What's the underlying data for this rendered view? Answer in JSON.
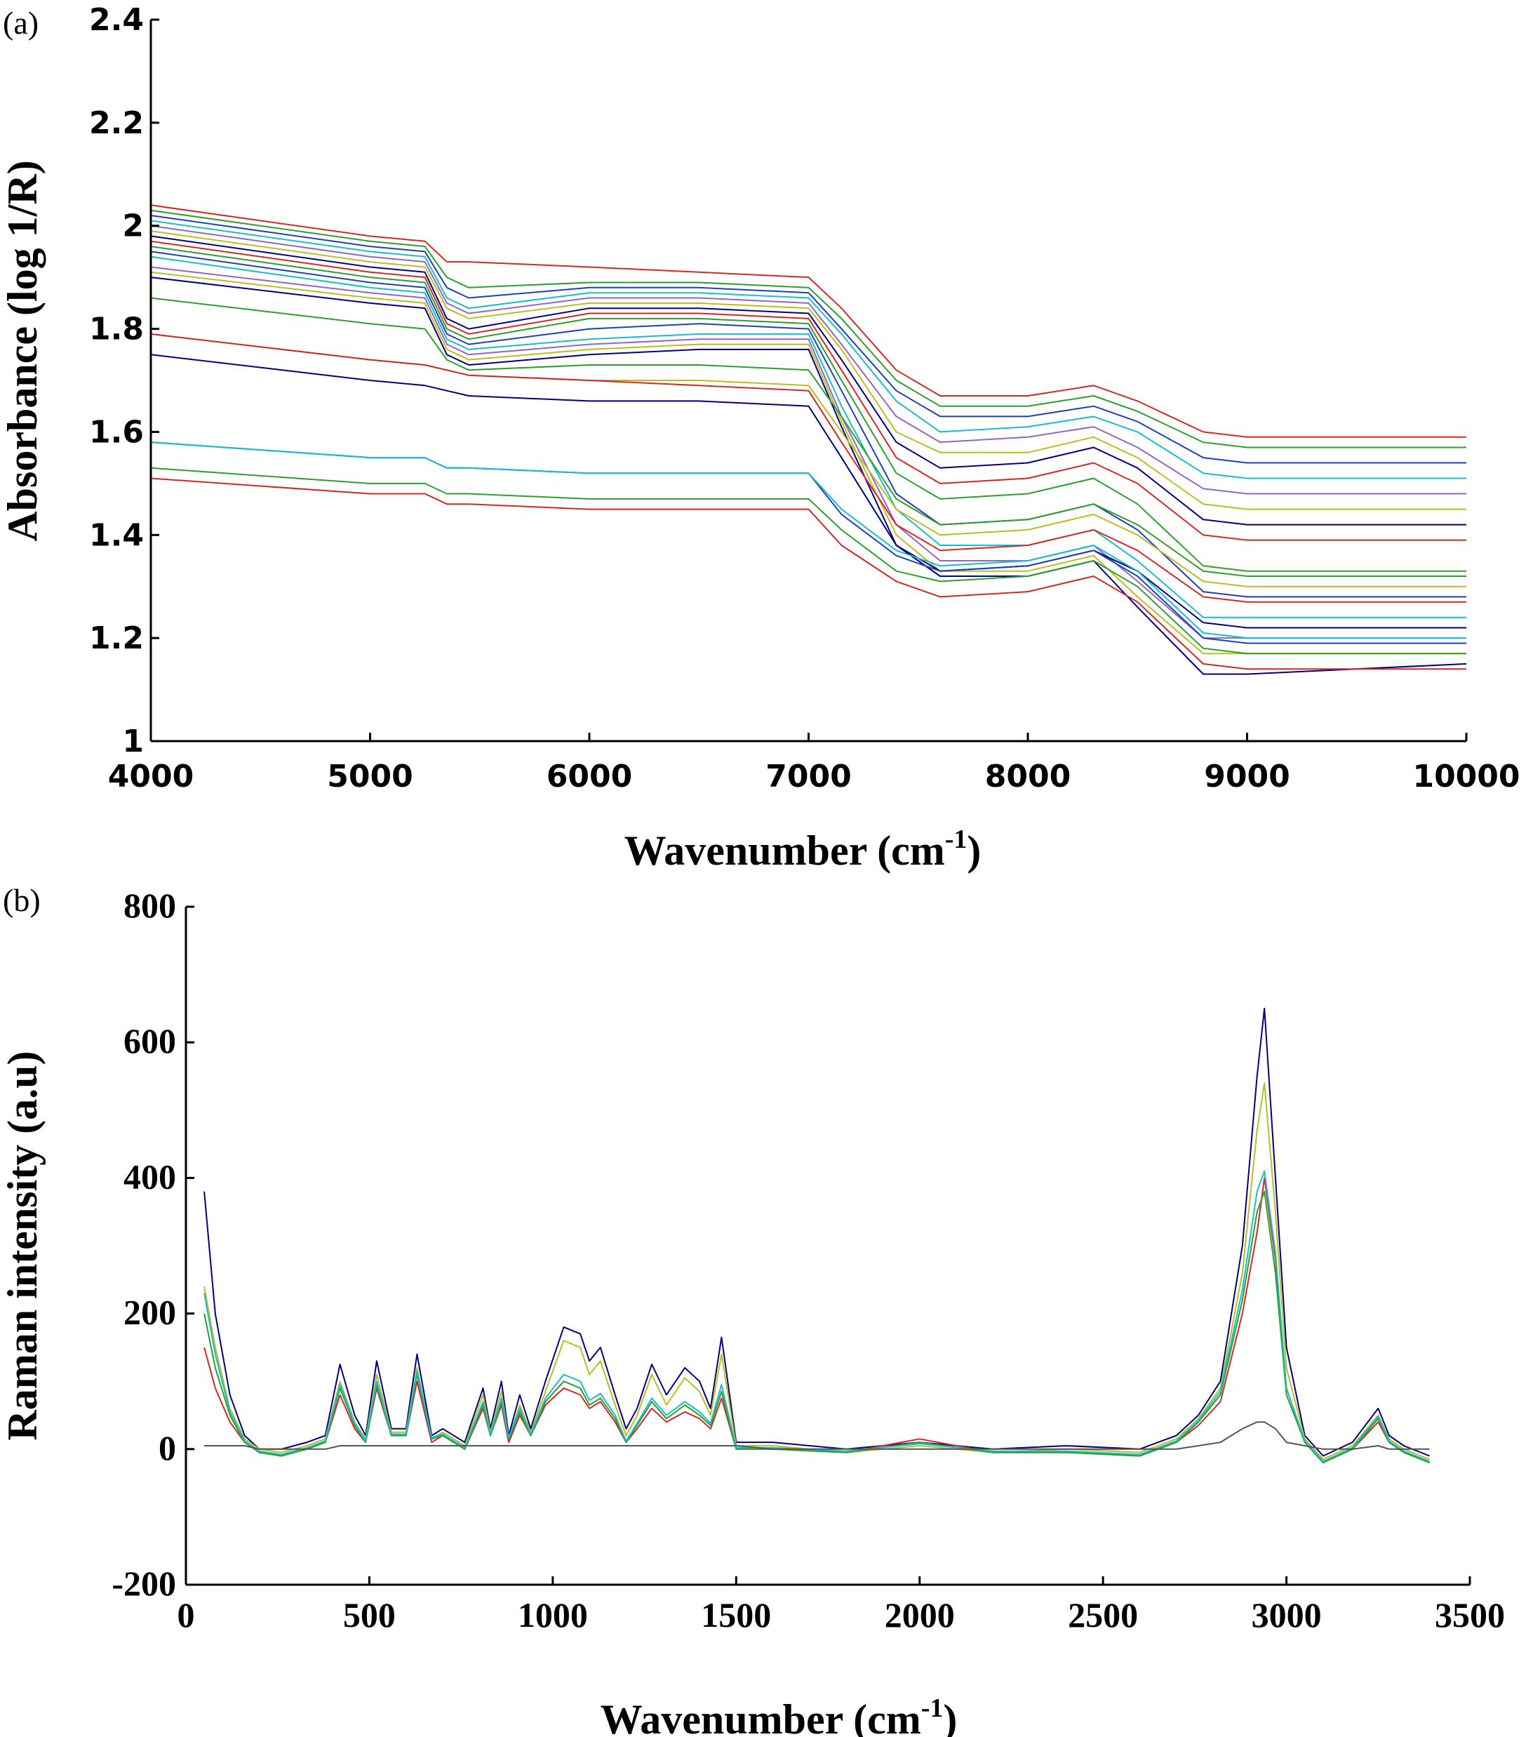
{
  "chart_data": [
    {
      "type": "line",
      "panel_label": "(a)",
      "title": "",
      "xlabel": "Wavenumber (cm",
      "xlabel_sup": "-1",
      "xlabel_end": ")",
      "ylabel": "Absorbance (log 1/R)",
      "xlim": [
        4000,
        10000
      ],
      "ylim": [
        1,
        2.4
      ],
      "xticks": [
        4000,
        5000,
        6000,
        7000,
        8000,
        9000,
        10000
      ],
      "yticks": [
        1,
        1.2,
        1.4,
        1.6,
        1.8,
        2,
        2.2,
        2.4
      ],
      "xtick_labels": [
        "4000",
        "5000",
        "6000",
        "7000",
        "8000",
        "9000",
        "10000"
      ],
      "ytick_labels": [
        "1",
        "1.2",
        "1.4",
        "1.6",
        "1.8",
        "2",
        "2.2",
        "2.4"
      ],
      "grid": false,
      "legend": "none",
      "x": [
        4000,
        5000,
        5250,
        5350,
        5450,
        6000,
        6500,
        7000,
        7150,
        7400,
        7600,
        8000,
        8300,
        8500,
        8800,
        9000,
        10000
      ],
      "series": [
        {
          "color": "#d62728",
          "values": [
            2.04,
            1.98,
            1.97,
            1.93,
            1.93,
            1.92,
            1.91,
            1.9,
            1.84,
            1.72,
            1.67,
            1.67,
            1.69,
            1.66,
            1.6,
            1.59,
            1.59
          ]
        },
        {
          "color": "#2ca02c",
          "values": [
            2.03,
            1.97,
            1.96,
            1.9,
            1.88,
            1.89,
            1.89,
            1.88,
            1.82,
            1.7,
            1.65,
            1.65,
            1.67,
            1.64,
            1.58,
            1.57,
            1.57
          ]
        },
        {
          "color": "#1f3fbf",
          "values": [
            2.02,
            1.96,
            1.95,
            1.88,
            1.86,
            1.88,
            1.88,
            1.87,
            1.8,
            1.68,
            1.63,
            1.63,
            1.65,
            1.62,
            1.55,
            1.54,
            1.54
          ]
        },
        {
          "color": "#17becf",
          "values": [
            2.01,
            1.95,
            1.94,
            1.86,
            1.84,
            1.87,
            1.87,
            1.86,
            1.79,
            1.66,
            1.6,
            1.61,
            1.63,
            1.6,
            1.52,
            1.51,
            1.51
          ]
        },
        {
          "color": "#9467bd",
          "values": [
            2.0,
            1.94,
            1.93,
            1.85,
            1.83,
            1.86,
            1.86,
            1.85,
            1.77,
            1.63,
            1.58,
            1.59,
            1.61,
            1.57,
            1.49,
            1.48,
            1.48
          ]
        },
        {
          "color": "#bcbd22",
          "values": [
            1.99,
            1.93,
            1.92,
            1.84,
            1.82,
            1.85,
            1.85,
            1.84,
            1.76,
            1.6,
            1.56,
            1.56,
            1.59,
            1.55,
            1.46,
            1.45,
            1.45
          ]
        },
        {
          "color": "#000080",
          "values": [
            1.98,
            1.92,
            1.91,
            1.82,
            1.8,
            1.84,
            1.84,
            1.83,
            1.74,
            1.58,
            1.53,
            1.54,
            1.57,
            1.53,
            1.43,
            1.42,
            1.42
          ]
        },
        {
          "color": "#d62728",
          "values": [
            1.97,
            1.91,
            1.9,
            1.81,
            1.79,
            1.83,
            1.83,
            1.82,
            1.72,
            1.55,
            1.5,
            1.51,
            1.54,
            1.5,
            1.4,
            1.39,
            1.39
          ]
        },
        {
          "color": "#2ca02c",
          "values": [
            1.96,
            1.9,
            1.89,
            1.8,
            1.78,
            1.82,
            1.82,
            1.81,
            1.7,
            1.52,
            1.47,
            1.48,
            1.51,
            1.46,
            1.34,
            1.33,
            1.33
          ]
        },
        {
          "color": "#1f3fbf",
          "values": [
            1.95,
            1.89,
            1.88,
            1.79,
            1.77,
            1.8,
            1.81,
            1.8,
            1.68,
            1.48,
            1.42,
            1.43,
            1.46,
            1.41,
            1.29,
            1.28,
            1.28
          ]
        },
        {
          "color": "#17becf",
          "values": [
            1.94,
            1.88,
            1.87,
            1.78,
            1.76,
            1.78,
            1.79,
            1.79,
            1.65,
            1.45,
            1.38,
            1.38,
            1.41,
            1.35,
            1.24,
            1.24,
            1.24
          ]
        },
        {
          "color": "#9467bd",
          "values": [
            1.92,
            1.87,
            1.86,
            1.77,
            1.75,
            1.77,
            1.78,
            1.78,
            1.63,
            1.42,
            1.35,
            1.35,
            1.38,
            1.31,
            1.2,
            1.2,
            1.2
          ]
        },
        {
          "color": "#bcbd22",
          "values": [
            1.91,
            1.86,
            1.85,
            1.76,
            1.74,
            1.76,
            1.77,
            1.77,
            1.62,
            1.4,
            1.33,
            1.33,
            1.36,
            1.28,
            1.17,
            1.17,
            1.17
          ]
        },
        {
          "color": "#000080",
          "values": [
            1.9,
            1.85,
            1.84,
            1.75,
            1.73,
            1.75,
            1.76,
            1.76,
            1.61,
            1.38,
            1.32,
            1.32,
            1.35,
            1.26,
            1.13,
            1.13,
            1.15
          ]
        },
        {
          "color": "#2ca02c",
          "values": [
            1.86,
            1.81,
            1.8,
            1.74,
            1.72,
            1.73,
            1.73,
            1.72,
            1.63,
            1.47,
            1.42,
            1.43,
            1.46,
            1.42,
            1.33,
            1.32,
            1.32
          ]
        },
        {
          "color": "#bcbd22",
          "values": [
            1.79,
            1.74,
            1.73,
            1.72,
            1.71,
            1.7,
            1.7,
            1.69,
            1.6,
            1.45,
            1.4,
            1.41,
            1.44,
            1.4,
            1.31,
            1.3,
            1.3
          ]
        },
        {
          "color": "#d62728",
          "values": [
            1.79,
            1.74,
            1.73,
            1.72,
            1.71,
            1.7,
            1.69,
            1.68,
            1.58,
            1.42,
            1.37,
            1.38,
            1.41,
            1.37,
            1.28,
            1.27,
            1.27
          ]
        },
        {
          "color": "#000080",
          "values": [
            1.75,
            1.7,
            1.69,
            1.68,
            1.67,
            1.66,
            1.66,
            1.65,
            1.55,
            1.38,
            1.33,
            1.34,
            1.37,
            1.33,
            1.23,
            1.22,
            1.22
          ]
        },
        {
          "color": "#1f3fbf",
          "values": [
            1.58,
            1.55,
            1.55,
            1.53,
            1.53,
            1.52,
            1.52,
            1.52,
            1.44,
            1.36,
            1.33,
            1.34,
            1.37,
            1.32,
            1.2,
            1.19,
            1.19
          ]
        },
        {
          "color": "#17becf",
          "values": [
            1.58,
            1.55,
            1.55,
            1.53,
            1.53,
            1.52,
            1.52,
            1.52,
            1.45,
            1.37,
            1.34,
            1.35,
            1.38,
            1.33,
            1.21,
            1.2,
            1.2
          ]
        },
        {
          "color": "#2ca02c",
          "values": [
            1.53,
            1.5,
            1.5,
            1.48,
            1.48,
            1.47,
            1.47,
            1.47,
            1.41,
            1.33,
            1.31,
            1.32,
            1.35,
            1.3,
            1.18,
            1.17,
            1.17
          ]
        },
        {
          "color": "#d62728",
          "values": [
            1.51,
            1.48,
            1.48,
            1.46,
            1.46,
            1.45,
            1.45,
            1.45,
            1.38,
            1.31,
            1.28,
            1.29,
            1.32,
            1.27,
            1.15,
            1.14,
            1.14
          ]
        }
      ]
    },
    {
      "type": "line",
      "panel_label": "(b)",
      "title": "",
      "xlabel": "Wavenumber (cm",
      "xlabel_sup": "-1",
      "xlabel_end": ")",
      "ylabel": "Raman intensity (a.u)",
      "xlim": [
        0,
        3500
      ],
      "ylim": [
        -200,
        800
      ],
      "xticks": [
        0,
        500,
        1000,
        1500,
        2000,
        2500,
        3000,
        3500
      ],
      "yticks": [
        -200,
        0,
        200,
        400,
        600,
        800
      ],
      "xtick_labels": [
        "0",
        "500",
        "1000",
        "1500",
        "2000",
        "2500",
        "3000",
        "3500"
      ],
      "ytick_labels": [
        "-200",
        "0",
        "200",
        "400",
        "600",
        "800"
      ],
      "grid": false,
      "legend": "none",
      "x": [
        50,
        80,
        120,
        160,
        200,
        260,
        330,
        380,
        420,
        460,
        490,
        520,
        560,
        600,
        630,
        670,
        700,
        760,
        810,
        830,
        860,
        880,
        910,
        940,
        980,
        1030,
        1075,
        1100,
        1130,
        1170,
        1200,
        1230,
        1270,
        1310,
        1360,
        1400,
        1430,
        1460,
        1500,
        1600,
        1800,
        2000,
        2200,
        2400,
        2600,
        2700,
        2760,
        2820,
        2880,
        2920,
        2940,
        2970,
        3000,
        3050,
        3100,
        3180,
        3250,
        3280,
        3320,
        3390
      ],
      "series": [
        {
          "color": "#000080",
          "values": [
            380,
            200,
            80,
            20,
            0,
            0,
            10,
            20,
            125,
            50,
            20,
            130,
            30,
            30,
            140,
            20,
            30,
            10,
            90,
            30,
            100,
            20,
            80,
            30,
            100,
            180,
            170,
            130,
            150,
            80,
            30,
            60,
            125,
            80,
            120,
            100,
            60,
            165,
            10,
            10,
            0,
            10,
            0,
            5,
            0,
            20,
            50,
            100,
            300,
            550,
            650,
            400,
            150,
            20,
            -10,
            10,
            60,
            20,
            5,
            -10
          ]
        },
        {
          "color": "#bcbd22",
          "values": [
            240,
            150,
            60,
            15,
            0,
            -5,
            5,
            15,
            100,
            40,
            15,
            110,
            25,
            25,
            120,
            15,
            25,
            5,
            80,
            25,
            85,
            15,
            65,
            25,
            85,
            160,
            150,
            110,
            130,
            65,
            20,
            50,
            110,
            65,
            105,
            85,
            50,
            140,
            5,
            5,
            -5,
            5,
            -5,
            0,
            -5,
            15,
            45,
            90,
            260,
            470,
            540,
            350,
            120,
            15,
            -15,
            5,
            50,
            15,
            0,
            -15
          ]
        },
        {
          "color": "#d62728",
          "values": [
            150,
            90,
            40,
            10,
            -5,
            -10,
            0,
            10,
            80,
            30,
            10,
            90,
            20,
            20,
            100,
            10,
            20,
            0,
            60,
            20,
            65,
            10,
            50,
            20,
            65,
            90,
            80,
            60,
            70,
            40,
            10,
            30,
            60,
            40,
            55,
            45,
            30,
            75,
            0,
            0,
            -5,
            15,
            -5,
            -5,
            -10,
            10,
            35,
            70,
            200,
            320,
            400,
            280,
            90,
            10,
            -20,
            0,
            40,
            10,
            -5,
            -20
          ]
        },
        {
          "color": "#2ca02c",
          "values": [
            200,
            120,
            50,
            10,
            -5,
            -10,
            0,
            10,
            90,
            35,
            10,
            95,
            20,
            20,
            110,
            15,
            20,
            0,
            65,
            20,
            70,
            15,
            55,
            20,
            70,
            100,
            90,
            65,
            75,
            45,
            10,
            35,
            70,
            45,
            65,
            50,
            35,
            85,
            0,
            0,
            -5,
            10,
            -5,
            -5,
            -10,
            10,
            40,
            80,
            220,
            350,
            380,
            260,
            80,
            10,
            -20,
            0,
            45,
            10,
            -5,
            -20
          ]
        },
        {
          "color": "#17becf",
          "values": [
            230,
            140,
            55,
            12,
            -3,
            -8,
            2,
            12,
            95,
            38,
            12,
            100,
            22,
            22,
            115,
            17,
            22,
            2,
            70,
            22,
            75,
            17,
            60,
            22,
            75,
            110,
            100,
            72,
            82,
            50,
            12,
            38,
            75,
            50,
            70,
            55,
            38,
            95,
            2,
            2,
            -3,
            8,
            -3,
            -3,
            -8,
            12,
            42,
            85,
            235,
            380,
            410,
            290,
            90,
            12,
            -18,
            2,
            48,
            12,
            -3,
            -18
          ]
        },
        {
          "color": "#555555",
          "values": [
            5,
            5,
            5,
            5,
            0,
            0,
            0,
            0,
            5,
            5,
            5,
            5,
            5,
            5,
            5,
            5,
            5,
            5,
            5,
            5,
            5,
            5,
            5,
            5,
            5,
            5,
            5,
            5,
            5,
            5,
            5,
            5,
            5,
            5,
            5,
            5,
            5,
            5,
            5,
            0,
            0,
            0,
            0,
            0,
            0,
            0,
            5,
            10,
            30,
            40,
            40,
            30,
            10,
            5,
            0,
            0,
            5,
            0,
            0,
            0
          ]
        }
      ]
    }
  ]
}
